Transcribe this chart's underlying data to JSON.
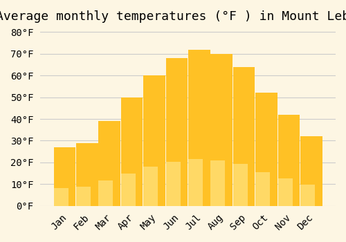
{
  "title": "Average monthly temperatures (°F ) in Mount Lebanon",
  "months": [
    "Jan",
    "Feb",
    "Mar",
    "Apr",
    "May",
    "Jun",
    "Jul",
    "Aug",
    "Sep",
    "Oct",
    "Nov",
    "Dec"
  ],
  "values": [
    27,
    29,
    39,
    50,
    60,
    68,
    72,
    70,
    64,
    52,
    42,
    32
  ],
  "bar_color_top": "#FFC125",
  "bar_color_bottom": "#FFD966",
  "ylim": [
    0,
    82
  ],
  "yticks": [
    0,
    10,
    20,
    30,
    40,
    50,
    60,
    70,
    80
  ],
  "ylabel_suffix": "°F",
  "background_color": "#fdf6e3",
  "grid_color": "#cccccc",
  "title_fontsize": 13,
  "tick_fontsize": 10,
  "font_family": "monospace"
}
